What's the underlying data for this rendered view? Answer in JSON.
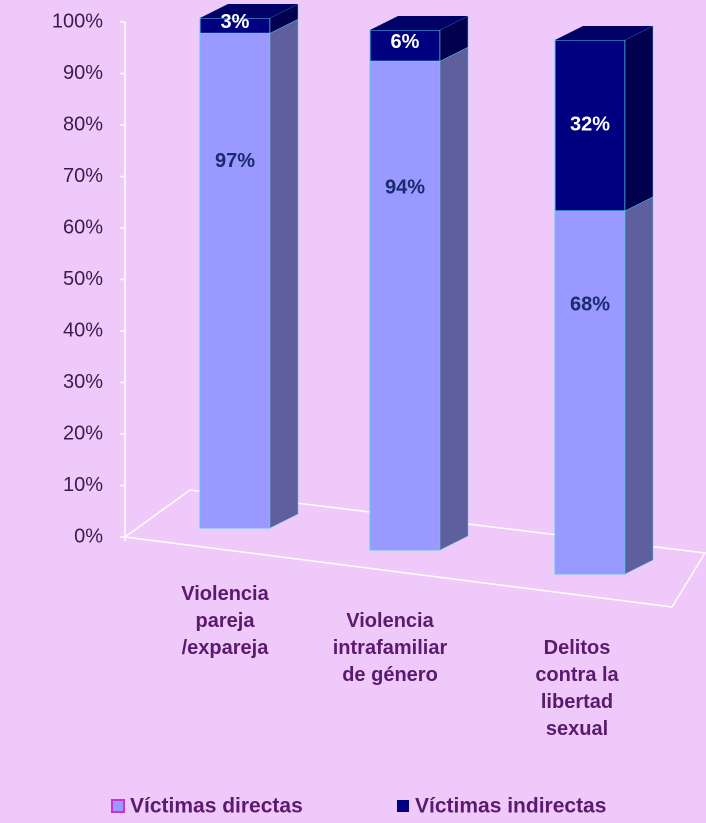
{
  "chart_data": {
    "type": "bar3d_stacked",
    "categories": [
      "Violencia\npareja\n/expareja",
      "Violencia\nintrafamiliar\nde género",
      "Delitos\ncontra la\nlibertad\nsexual"
    ],
    "series": [
      {
        "name": "Víctimas directas",
        "color": "#9999ff",
        "values": [
          97,
          94,
          68
        ],
        "value_labels": [
          "97%",
          "94%",
          "68%"
        ]
      },
      {
        "name": "Víctimas indirectas",
        "color": "#000080",
        "values": [
          3,
          6,
          32
        ],
        "value_labels": [
          "3%",
          "6%",
          "32%"
        ]
      }
    ],
    "ylim": [
      0,
      100
    ],
    "yticks": [
      {
        "value": 0,
        "label": "0%"
      },
      {
        "value": 10,
        "label": "10%"
      },
      {
        "value": 20,
        "label": "20%"
      },
      {
        "value": 30,
        "label": "30%"
      },
      {
        "value": 40,
        "label": "40%"
      },
      {
        "value": 50,
        "label": "50%"
      },
      {
        "value": 60,
        "label": "60%"
      },
      {
        "value": 70,
        "label": "70%"
      },
      {
        "value": 80,
        "label": "80%"
      },
      {
        "value": 90,
        "label": "90%"
      },
      {
        "value": 100,
        "label": "100%"
      }
    ],
    "legend": "bottom"
  }
}
